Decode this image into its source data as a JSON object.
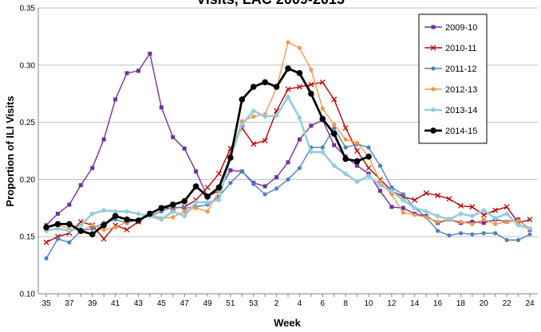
{
  "chart_data": {
    "type": "line",
    "title": "Visits, LAC 2009-2015",
    "xlabel": "Week",
    "ylabel": "Proportion of ILI Visits",
    "ylim": [
      0.1,
      0.35
    ],
    "yticks": [
      "0.10",
      "0.15",
      "0.20",
      "0.25",
      "0.30",
      "0.35"
    ],
    "x": [
      "35",
      "36",
      "37",
      "38",
      "39",
      "40",
      "41",
      "42",
      "43",
      "44",
      "45",
      "46",
      "47",
      "48",
      "49",
      "50",
      "51",
      "52",
      "53",
      "1",
      "2",
      "3",
      "4",
      "5",
      "6",
      "7",
      "8",
      "9",
      "10",
      "11",
      "12",
      "13",
      "14",
      "15",
      "16",
      "17",
      "18",
      "19",
      "20",
      "21",
      "22",
      "23",
      "24"
    ],
    "xtick_labels": [
      "35",
      "37",
      "39",
      "41",
      "43",
      "45",
      "47",
      "49",
      "51",
      "53",
      "2",
      "4",
      "6",
      "8",
      "10",
      "12",
      "14",
      "16",
      "18",
      "20",
      "22",
      "24"
    ],
    "grid": "horizontal",
    "legend_position": "top-right",
    "series": [
      {
        "name": "2009-10",
        "color": "#7030a0",
        "marker": "square",
        "values": [
          0.16,
          0.17,
          0.178,
          0.195,
          0.21,
          0.235,
          0.27,
          0.293,
          0.295,
          0.31,
          0.263,
          0.237,
          0.227,
          0.207,
          0.185,
          0.19,
          0.208,
          0.207,
          0.197,
          0.194,
          0.202,
          0.215,
          0.235,
          0.247,
          0.252,
          0.23,
          0.22,
          0.212,
          0.205,
          0.19,
          0.176,
          0.175,
          0.17,
          0.168,
          0.162,
          0.165,
          0.162,
          0.163,
          0.162,
          0.165,
          0.163,
          0.165,
          0.156
        ]
      },
      {
        "name": "2010-11",
        "color": "#c00000",
        "marker": "x",
        "values": [
          0.145,
          0.15,
          0.153,
          0.163,
          0.16,
          0.148,
          0.16,
          0.156,
          0.163,
          0.17,
          0.175,
          0.175,
          0.176,
          0.182,
          0.193,
          0.205,
          0.227,
          0.245,
          0.231,
          0.234,
          0.26,
          0.279,
          0.281,
          0.283,
          0.285,
          0.27,
          0.245,
          0.225,
          0.21,
          0.2,
          0.19,
          0.185,
          0.182,
          0.188,
          0.186,
          0.183,
          0.177,
          0.176,
          0.169,
          0.173,
          0.176,
          0.162,
          0.165
        ]
      },
      {
        "name": "2011-12",
        "color": "#4f81bd",
        "marker": "circle",
        "values": [
          0.131,
          0.148,
          0.145,
          0.155,
          0.157,
          0.162,
          0.165,
          0.162,
          0.165,
          0.168,
          0.172,
          0.176,
          0.175,
          0.176,
          0.178,
          0.185,
          0.197,
          0.207,
          0.196,
          0.187,
          0.192,
          0.2,
          0.21,
          0.228,
          0.228,
          0.245,
          0.228,
          0.231,
          0.228,
          0.212,
          0.193,
          0.187,
          0.175,
          0.167,
          0.155,
          0.151,
          0.153,
          0.152,
          0.153,
          0.153,
          0.147,
          0.147,
          0.152
        ]
      },
      {
        "name": "2012-13",
        "color": "#f79646",
        "marker": "circle",
        "values": [
          0.158,
          0.16,
          0.157,
          0.155,
          0.16,
          0.156,
          0.158,
          0.163,
          0.165,
          0.17,
          0.166,
          0.167,
          0.172,
          0.175,
          0.172,
          0.19,
          0.222,
          0.251,
          0.255,
          0.257,
          0.28,
          0.32,
          0.315,
          0.296,
          0.262,
          0.248,
          0.235,
          0.232,
          0.22,
          0.198,
          0.187,
          0.171,
          0.169,
          0.167,
          0.163,
          0.165,
          0.163,
          0.161,
          0.165,
          0.161,
          0.163,
          0.164,
          0.157
        ]
      },
      {
        "name": "2013-14",
        "color": "#93cddd",
        "marker": "diamond",
        "values": [
          0.155,
          0.157,
          0.155,
          0.16,
          0.17,
          0.173,
          0.172,
          0.172,
          0.17,
          0.168,
          0.165,
          0.172,
          0.168,
          0.18,
          0.18,
          0.182,
          0.22,
          0.248,
          0.26,
          0.255,
          0.256,
          0.272,
          0.254,
          0.224,
          0.224,
          0.212,
          0.205,
          0.198,
          0.203,
          0.195,
          0.19,
          0.182,
          0.175,
          0.172,
          0.168,
          0.165,
          0.17,
          0.168,
          0.173,
          0.166,
          0.17,
          0.16,
          0.157
        ]
      },
      {
        "name": "2014-15",
        "color": "#000000",
        "marker": "circle-large",
        "values": [
          0.158,
          0.161,
          0.161,
          0.155,
          0.152,
          0.16,
          0.168,
          0.165,
          0.164,
          0.17,
          0.175,
          0.178,
          0.181,
          0.194,
          0.185,
          0.193,
          0.219,
          0.27,
          0.281,
          0.285,
          0.281,
          0.297,
          0.293,
          0.275,
          0.253,
          0.24,
          0.218,
          0.216,
          0.22,
          null,
          null,
          null,
          null,
          null,
          null,
          null,
          null,
          null,
          null,
          null,
          null,
          null,
          null
        ]
      }
    ]
  }
}
